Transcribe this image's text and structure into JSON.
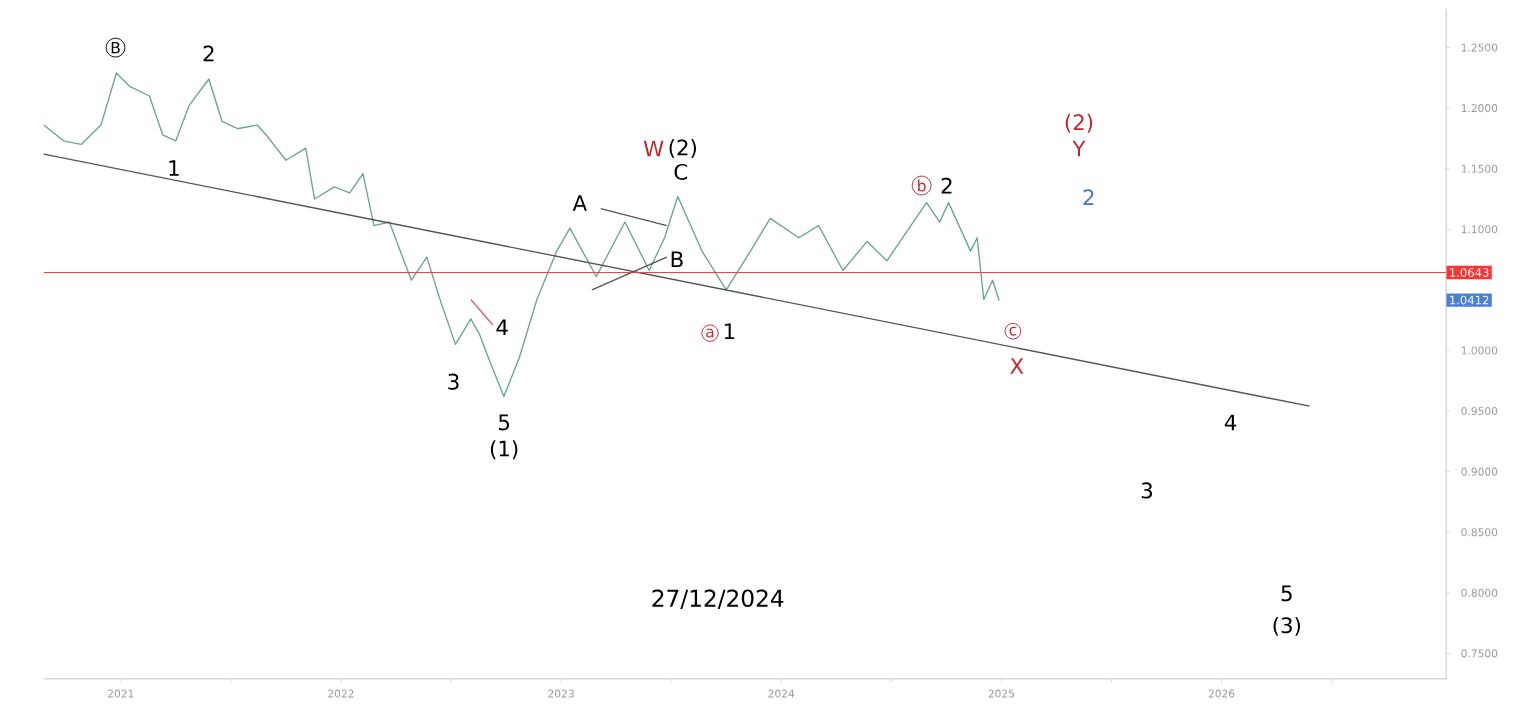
{
  "chart_data": {
    "type": "line",
    "xlim": [
      2020.65,
      2027.02
    ],
    "ylim": [
      0.729,
      1.282
    ],
    "xticks": [
      {
        "value": 2021,
        "label": "2021"
      },
      {
        "value": 2021.5,
        "label": null
      },
      {
        "value": 2022,
        "label": "2022"
      },
      {
        "value": 2022.5,
        "label": null
      },
      {
        "value": 2023,
        "label": "2023"
      },
      {
        "value": 2023.5,
        "label": null
      },
      {
        "value": 2024,
        "label": "2024"
      },
      {
        "value": 2024.5,
        "label": null
      },
      {
        "value": 2025,
        "label": "2025"
      },
      {
        "value": 2025.5,
        "label": null
      },
      {
        "value": 2026,
        "label": "2026"
      },
      {
        "value": 2026.5,
        "label": null
      }
    ],
    "yticks": [
      {
        "value": 0.75,
        "label": "0.7500"
      },
      {
        "value": 0.8,
        "label": "0.8000"
      },
      {
        "value": 0.85,
        "label": "0.8500"
      },
      {
        "value": 0.9,
        "label": "0.9000"
      },
      {
        "value": 0.95,
        "label": "0.9500"
      },
      {
        "value": 1.0,
        "label": "1.0000"
      },
      {
        "value": 1.05,
        "label": null
      },
      {
        "value": 1.1,
        "label": "1.1000"
      },
      {
        "value": 1.15,
        "label": "1.1500"
      },
      {
        "value": 1.2,
        "label": "1.2000"
      },
      {
        "value": 1.25,
        "label": "1.2500"
      }
    ],
    "series": [
      {
        "color": "#6aa88a",
        "x": [
          2020.65,
          2020.74,
          2020.82,
          2020.91,
          2020.98,
          2021.04,
          2021.13,
          2021.19,
          2021.25,
          2021.31,
          2021.4,
          2021.46,
          2021.53,
          2021.62,
          2021.66,
          2021.75,
          2021.84,
          2021.88,
          2021.97,
          2022.04,
          2022.1,
          2022.15,
          2022.22,
          2022.28,
          2022.32,
          2022.39,
          2022.45,
          2022.52,
          2022.59,
          2022.63,
          2022.67,
          2022.74,
          2022.81,
          2022.89,
          2022.98,
          2023.04,
          2023.16,
          2023.29,
          2023.4,
          2023.47,
          2023.53,
          2023.64,
          2023.75,
          2023.86,
          2023.95,
          2024.08,
          2024.17,
          2024.28,
          2024.39,
          2024.48,
          2024.57,
          2024.66,
          2024.72,
          2024.76,
          2024.86,
          2024.89,
          2024.92,
          2024.96,
          2024.99
        ],
        "values": [
          1.186,
          1.173,
          1.17,
          1.186,
          1.229,
          1.218,
          1.21,
          1.178,
          1.173,
          1.202,
          1.224,
          1.189,
          1.183,
          1.186,
          1.178,
          1.157,
          1.167,
          1.125,
          1.135,
          1.13,
          1.146,
          1.103,
          1.106,
          1.077,
          1.058,
          1.077,
          1.042,
          1.005,
          1.026,
          1.013,
          0.994,
          0.962,
          0.994,
          1.042,
          1.082,
          1.101,
          1.061,
          1.106,
          1.066,
          1.093,
          1.127,
          1.082,
          1.05,
          1.082,
          1.109,
          1.093,
          1.103,
          1.066,
          1.09,
          1.074,
          1.098,
          1.122,
          1.106,
          1.122,
          1.082,
          1.093,
          1.042,
          1.058,
          1.041
        ]
      },
      {
        "color": "#555555",
        "x": [
          2020.65,
          2026.4
        ],
        "values": [
          1.162,
          0.954
        ]
      },
      {
        "color": "#555555",
        "x": [
          2023.18,
          2023.48
        ],
        "values": [
          1.117,
          1.103
        ]
      },
      {
        "color": "#555555",
        "x": [
          2023.14,
          2023.48
        ],
        "values": [
          1.05,
          1.077
        ]
      },
      {
        "color": "#e06060",
        "x": [
          2022.59,
          2022.69
        ],
        "values": [
          1.042,
          1.021
        ]
      }
    ],
    "ref_lines": [
      {
        "axis": "y",
        "value": 1.0643,
        "label": "1.0643",
        "color": "#ff3333"
      }
    ],
    "annotations": [
      "B",
      "2",
      "1",
      "W",
      "(2)",
      "C",
      "A",
      "B",
      "4",
      "3",
      "5",
      "(1)",
      "a",
      "1",
      "b",
      "2",
      "(2)",
      "Y",
      "2",
      "c",
      "X",
      "4",
      "3",
      "5",
      "(3)",
      "1.0412",
      "27/12/2024"
    ]
  }
}
